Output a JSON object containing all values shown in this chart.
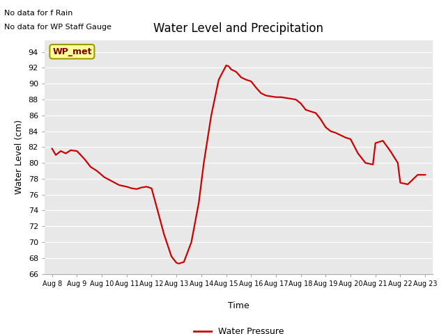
{
  "title": "Water Level and Precipitation",
  "xlabel": "Time",
  "ylabel": "Water Level (cm)",
  "legend_label": "Water Pressure",
  "annotation_lines": [
    "No data for f Rain",
    "No data for WP Staff Gauge"
  ],
  "wp_met_label": "WP_met",
  "ylim": [
    66,
    95.5
  ],
  "yticks": [
    66,
    68,
    70,
    72,
    74,
    76,
    78,
    80,
    82,
    84,
    86,
    88,
    90,
    92,
    94
  ],
  "xtick_labels": [
    "Aug 8",
    "Aug 9",
    "Aug 10",
    "Aug 11",
    "Aug 12",
    "Aug 13",
    "Aug 14",
    "Aug 15",
    "Aug 16",
    "Aug 17",
    "Aug 18",
    "Aug 19",
    "Aug 20",
    "Aug 21",
    "Aug 22",
    "Aug 23"
  ],
  "line_color": "#cc0000",
  "line_width": 1.6,
  "background_color": "#e8e8e8",
  "wp_met_bg": "#ffff99",
  "wp_met_text_color": "#800000",
  "wp_met_border": "#999900",
  "x_points": [
    0.0,
    0.15,
    0.35,
    0.55,
    0.75,
    1.0,
    1.3,
    1.55,
    1.8,
    2.1,
    2.4,
    2.7,
    3.0,
    3.2,
    3.4,
    3.6,
    3.8,
    4.0,
    4.2,
    4.5,
    4.8,
    5.0,
    5.1,
    5.3,
    5.6,
    5.9,
    6.1,
    6.4,
    6.7,
    7.0,
    7.1,
    7.2,
    7.4,
    7.6,
    7.8,
    8.0,
    8.2,
    8.4,
    8.6,
    8.8,
    9.0,
    9.2,
    9.4,
    9.6,
    9.8,
    10.0,
    10.2,
    10.4,
    10.6,
    10.8,
    11.0,
    11.2,
    11.4,
    11.6,
    11.8,
    12.0,
    12.3,
    12.6,
    12.9,
    13.0,
    13.3,
    13.6,
    13.9,
    14.0,
    14.3,
    14.7,
    15.0
  ],
  "y_points": [
    81.8,
    81.0,
    81.5,
    81.2,
    81.6,
    81.5,
    80.5,
    79.5,
    79.0,
    78.2,
    77.7,
    77.2,
    77.0,
    76.8,
    76.7,
    76.9,
    77.0,
    76.8,
    74.5,
    71.0,
    68.2,
    67.4,
    67.3,
    67.5,
    70.0,
    75.0,
    80.0,
    86.0,
    90.5,
    92.3,
    92.2,
    91.8,
    91.5,
    90.8,
    90.5,
    90.3,
    89.5,
    88.8,
    88.5,
    88.4,
    88.3,
    88.3,
    88.2,
    88.1,
    88.0,
    87.5,
    86.7,
    86.5,
    86.3,
    85.5,
    84.5,
    84.0,
    83.8,
    83.5,
    83.2,
    83.0,
    81.2,
    80.0,
    79.8,
    82.5,
    82.8,
    81.5,
    80.0,
    77.5,
    77.3,
    78.5,
    78.5
  ]
}
